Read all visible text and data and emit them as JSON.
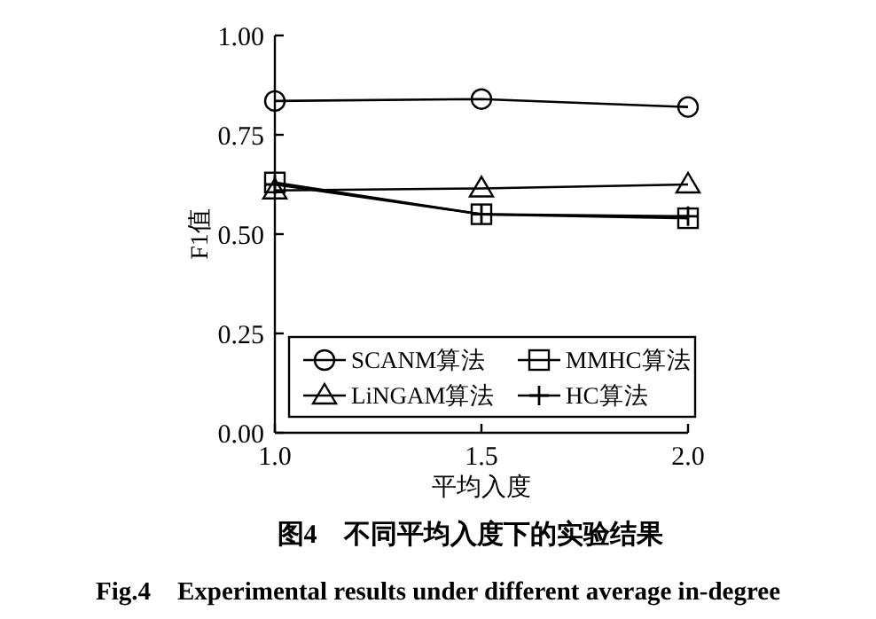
{
  "chart_data": {
    "type": "line",
    "title": "图4　不同平均入度下的实验结果",
    "subtitle": "Fig.4　Experimental results under different average in-degree",
    "xlabel": "平均入度",
    "ylabel": "F1值",
    "x": [
      1.0,
      1.5,
      2.0
    ],
    "xlim": [
      1.0,
      2.0
    ],
    "xticks": [
      {
        "value": 1.0,
        "label": "1.0"
      },
      {
        "value": 1.5,
        "label": "1.5"
      },
      {
        "value": 2.0,
        "label": "2.0"
      }
    ],
    "ylim": [
      0,
      1
    ],
    "yticks": [
      {
        "value": 0,
        "label": "0.00"
      },
      {
        "value": 0.25,
        "label": "0.25"
      },
      {
        "value": 0.5,
        "label": "0.50"
      },
      {
        "value": 0.75,
        "label": "0.75"
      },
      {
        "value": 1,
        "label": "1.00"
      }
    ],
    "legend": "bottom",
    "grid": false,
    "line_style": "solid",
    "series": [
      {
        "name": "SCANM算法",
        "color": "#000000",
        "marker": "circle",
        "values": [
          0.835,
          0.84,
          0.82
        ]
      },
      {
        "name": "MMHC算法",
        "color": "#000000",
        "marker": "square",
        "values": [
          0.63,
          0.55,
          0.54
        ]
      },
      {
        "name": "LiNGAM算法",
        "color": "#000000",
        "marker": "triangle",
        "values": [
          0.61,
          0.615,
          0.625
        ]
      },
      {
        "name": "HC算法",
        "color": "#000000",
        "marker": "cross",
        "values": [
          0.625,
          0.55,
          0.545
        ]
      }
    ]
  }
}
